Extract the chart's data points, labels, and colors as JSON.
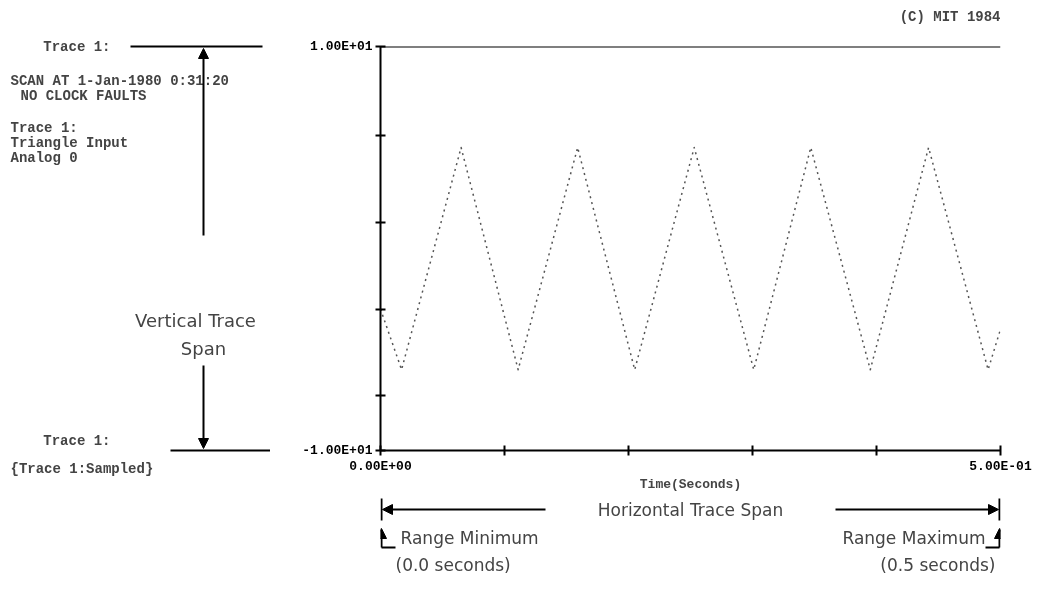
{
  "chart_data": {
    "type": "line",
    "xlabel": "Time(Seconds)",
    "x": [
      0,
      0.017,
      0.065,
      0.111,
      0.159,
      0.205,
      0.253,
      0.301,
      0.347,
      0.395,
      0.442,
      0.49,
      0.5
    ],
    "values": [
      -3,
      -6,
      5,
      -6,
      5,
      -6,
      5,
      -6,
      5,
      -6,
      5,
      -6,
      -4
    ],
    "color": "#555555",
    "line_style": "dotted",
    "marker": "none",
    "grid": false,
    "xlim": [
      0,
      0.5
    ],
    "ylim": [
      -10,
      10
    ],
    "xticks": [
      {
        "value": 0,
        "label": "0.00E+00"
      },
      {
        "value": 0.1,
        "label": null
      },
      {
        "value": 0.2,
        "label": null
      },
      {
        "value": 0.3,
        "label": null
      },
      {
        "value": 0.4,
        "label": null
      },
      {
        "value": 0.5,
        "label": "5.00E-01"
      }
    ],
    "yticks": [
      {
        "value": -10,
        "label": "-1.00E+01"
      },
      {
        "value": -7.3,
        "label": null
      },
      {
        "value": -3,
        "label": null
      },
      {
        "value": 1.3,
        "label": null
      },
      {
        "value": 5.6,
        "label": null
      },
      {
        "value": 10,
        "label": "1.00E+01"
      }
    ],
    "annotations": [
      "(C) MIT 1984",
      "Trace 1:",
      "SCAN AT 1-Jan-1980  0:31:20",
      "NO CLOCK FAULTS",
      "Trace 1:",
      "Triangle Input",
      "Analog  0",
      "Vertical Trace",
      "Span",
      "Trace 1:",
      "{Trace 1:Sampled}",
      "Horizontal Trace Span",
      "Range Minimum",
      "(0.0 seconds)",
      "Range Maximum",
      "(0.5 seconds)"
    ]
  }
}
